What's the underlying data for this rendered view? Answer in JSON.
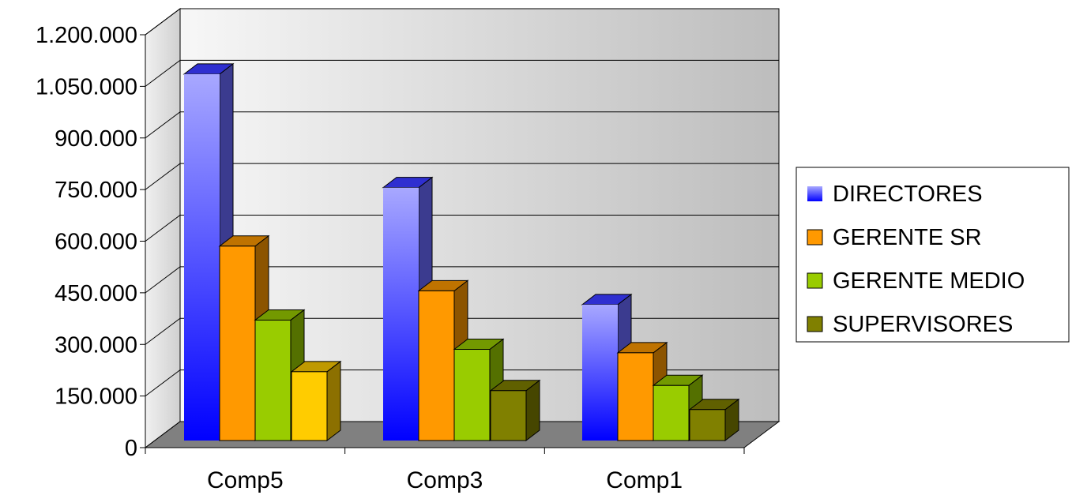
{
  "chart_data": {
    "type": "bar",
    "style": "3d-clustered-column",
    "categories": [
      "Comp5",
      "Comp3",
      "Comp1"
    ],
    "series": [
      {
        "name": "DIRECTORES",
        "values": [
          1065000,
          735000,
          395000
        ],
        "color": "#3333ff"
      },
      {
        "name": "GERENTE SR",
        "values": [
          565000,
          435000,
          255000
        ],
        "color": "#ff9900"
      },
      {
        "name": "GERENTE MEDIO",
        "values": [
          350000,
          265000,
          160000
        ],
        "color": "#99cc00"
      },
      {
        "name": "SUPERVISORES",
        "values": [
          200000,
          145000,
          90000
        ],
        "color": "#808000",
        "first_point_color": "#ffcc00"
      }
    ],
    "ylim": [
      0,
      1200000
    ],
    "yticks": [
      0,
      150000,
      300000,
      450000,
      600000,
      750000,
      900000,
      1050000,
      1200000
    ],
    "ytick_labels": [
      "0",
      "150.000",
      "300.000",
      "450.000",
      "600.000",
      "750.000",
      "900.000",
      "1.050.000",
      "1.200.000"
    ],
    "grid": true,
    "legend_position": "right",
    "title": "",
    "xlabel": "",
    "ylabel": ""
  }
}
